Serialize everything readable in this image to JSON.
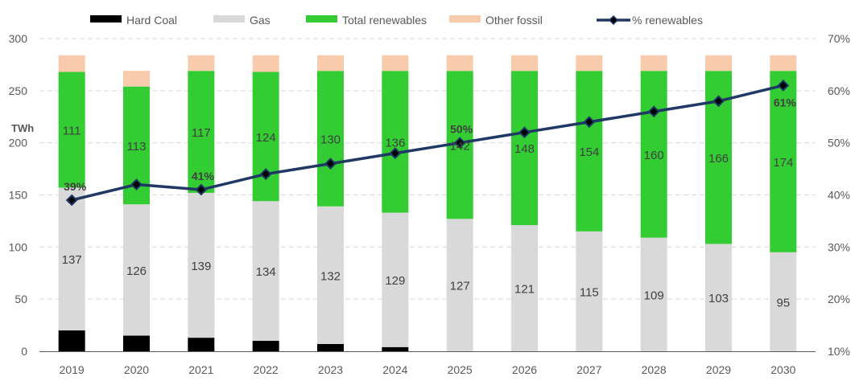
{
  "chart_data": {
    "type": "bar",
    "stacked": true,
    "title": "",
    "categories": [
      "2019",
      "2020",
      "2021",
      "2022",
      "2023",
      "2024",
      "2025",
      "2026",
      "2027",
      "2028",
      "2029",
      "2030"
    ],
    "series": [
      {
        "name": "Hard Coal",
        "color": "#000000",
        "values": [
          20,
          15,
          13,
          10,
          7,
          4,
          0,
          0,
          0,
          0,
          0,
          0
        ],
        "labels_shown": false
      },
      {
        "name": "Gas",
        "color": "#d9d9d9",
        "values": [
          137,
          126,
          139,
          134,
          132,
          129,
          127,
          121,
          115,
          109,
          103,
          95
        ],
        "labels_shown": true
      },
      {
        "name": "Total renewables",
        "color": "#33cc33",
        "values": [
          111,
          113,
          117,
          124,
          130,
          136,
          142,
          148,
          154,
          160,
          166,
          174
        ],
        "labels_shown": true
      },
      {
        "name": "Other fossil",
        "color": "#f8cbad",
        "values": [
          16,
          15,
          15,
          16,
          15,
          15,
          15,
          15,
          15,
          15,
          15,
          15
        ],
        "labels_shown": false
      }
    ],
    "line_series": {
      "name": "% renewables",
      "color": "#1f3864",
      "axis": "right",
      "values": [
        39,
        42,
        41,
        44,
        46,
        48,
        50,
        52,
        54,
        56,
        58,
        61
      ],
      "annotations": [
        {
          "index": 0,
          "text": "39%"
        },
        {
          "index": 2,
          "text": "41%"
        },
        {
          "index": 6,
          "text": "50%"
        },
        {
          "index": 11,
          "text": "61%"
        }
      ]
    },
    "ylabel": "TWh",
    "ylim": [
      0,
      300
    ],
    "yticks": [
      "0",
      "50",
      "100",
      "150",
      "200",
      "250",
      "300"
    ],
    "y2lim": [
      10,
      70
    ],
    "y2ticks": [
      "10%",
      "20%",
      "30%",
      "40%",
      "50%",
      "60%",
      "70%"
    ],
    "grid": true,
    "legend_position": "top"
  }
}
